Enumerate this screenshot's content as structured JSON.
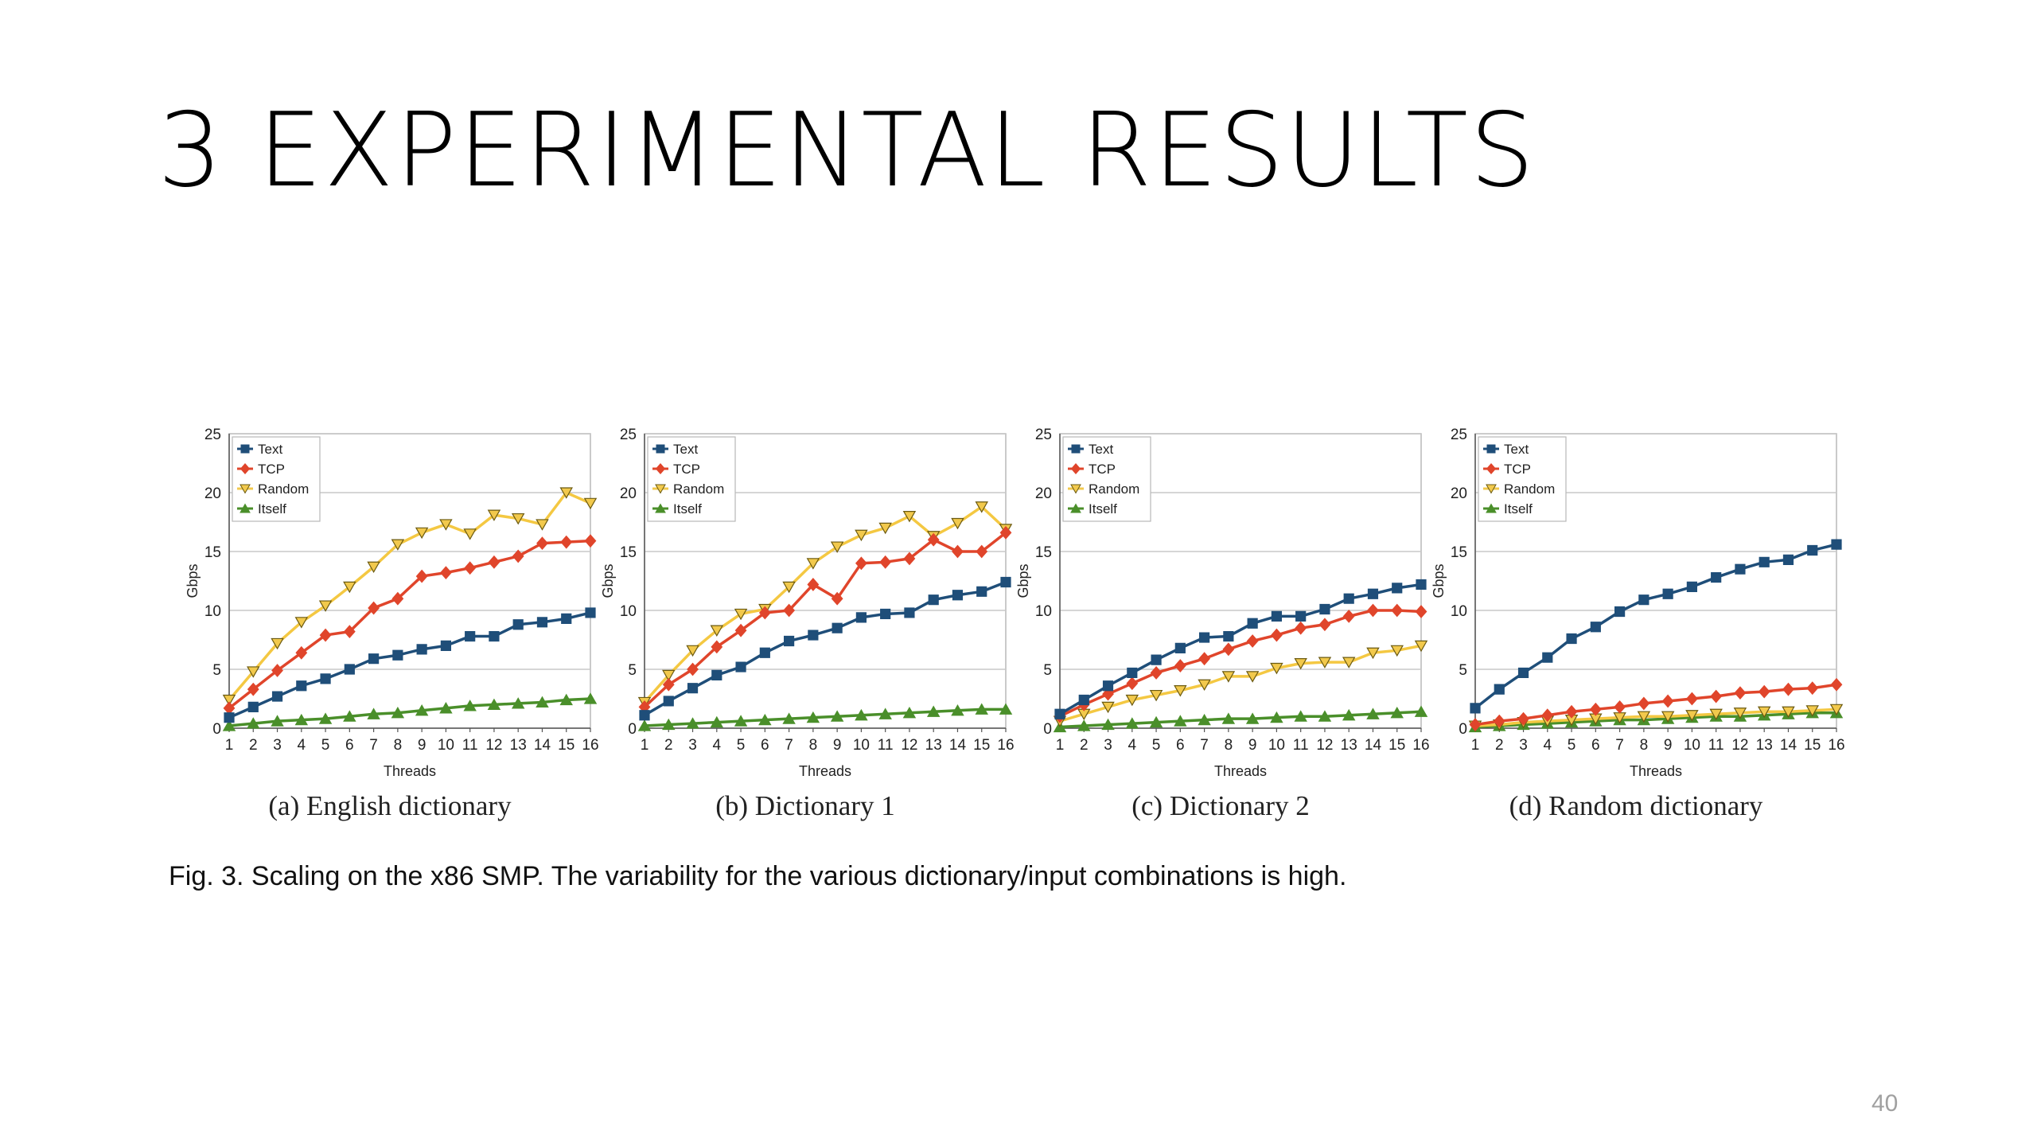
{
  "slide": {
    "title": "3 EXPERIMENTAL RESULTS",
    "figure_caption": "Fig. 3. Scaling on the x86 SMP. The variability for the various dictionary/input combinations is high.",
    "page_number": "40"
  },
  "chart_data": [
    {
      "type": "line",
      "caption": "(a) English dictionary",
      "xlabel": "Threads",
      "ylabel": "Gbps",
      "ylim": [
        0,
        25
      ],
      "yticks": [
        0,
        5,
        10,
        15,
        20,
        25
      ],
      "x": [
        1,
        2,
        3,
        4,
        5,
        6,
        7,
        8,
        9,
        10,
        11,
        12,
        13,
        14,
        15,
        16
      ],
      "grid": true,
      "legend_position": "top-left",
      "series": [
        {
          "name": "Text",
          "color": "#1f4e79",
          "marker": "square",
          "values": [
            0.9,
            1.8,
            2.7,
            3.6,
            4.2,
            5.0,
            5.9,
            6.2,
            6.7,
            7.0,
            7.8,
            7.8,
            8.8,
            9.0,
            9.3,
            9.8
          ]
        },
        {
          "name": "TCP",
          "color": "#e0452b",
          "marker": "diamond",
          "values": [
            1.7,
            3.3,
            4.9,
            6.4,
            7.9,
            8.2,
            10.2,
            11.0,
            12.9,
            13.2,
            13.6,
            14.1,
            14.6,
            15.7,
            15.8,
            15.9
          ]
        },
        {
          "name": "Random",
          "color": "#f2c94c",
          "marker": "triangle-down",
          "values": [
            2.4,
            4.8,
            7.2,
            9.0,
            10.4,
            12.0,
            13.7,
            15.6,
            16.6,
            17.3,
            16.5,
            18.1,
            17.8,
            17.3,
            20.0,
            19.1
          ]
        },
        {
          "name": "Itself",
          "color": "#4a8f2a",
          "marker": "triangle-up",
          "values": [
            0.2,
            0.4,
            0.6,
            0.7,
            0.8,
            1.0,
            1.2,
            1.3,
            1.5,
            1.7,
            1.9,
            2.0,
            2.1,
            2.2,
            2.4,
            2.5
          ]
        }
      ]
    },
    {
      "type": "line",
      "caption": "(b) Dictionary 1",
      "xlabel": "Threads",
      "ylabel": "Gbps",
      "ylim": [
        0,
        25
      ],
      "yticks": [
        0,
        5,
        10,
        15,
        20,
        25
      ],
      "x": [
        1,
        2,
        3,
        4,
        5,
        6,
        7,
        8,
        9,
        10,
        11,
        12,
        13,
        14,
        15,
        16
      ],
      "grid": true,
      "legend_position": "top-left",
      "series": [
        {
          "name": "Text",
          "color": "#1f4e79",
          "marker": "square",
          "values": [
            1.1,
            2.3,
            3.4,
            4.5,
            5.2,
            6.4,
            7.4,
            7.9,
            8.5,
            9.4,
            9.7,
            9.8,
            10.9,
            11.3,
            11.6,
            12.4
          ]
        },
        {
          "name": "TCP",
          "color": "#e0452b",
          "marker": "diamond",
          "values": [
            1.8,
            3.7,
            5.0,
            6.9,
            8.3,
            9.8,
            10.0,
            12.2,
            11.0,
            14.0,
            14.1,
            14.4,
            16.0,
            15.0,
            15.0,
            16.6
          ]
        },
        {
          "name": "Random",
          "color": "#f2c94c",
          "marker": "triangle-down",
          "values": [
            2.2,
            4.5,
            6.6,
            8.3,
            9.7,
            10.1,
            12.0,
            14.0,
            15.4,
            16.4,
            17.0,
            18.0,
            16.3,
            17.4,
            18.8,
            16.9
          ]
        },
        {
          "name": "Itself",
          "color": "#4a8f2a",
          "marker": "triangle-up",
          "values": [
            0.2,
            0.3,
            0.4,
            0.5,
            0.6,
            0.7,
            0.8,
            0.9,
            1.0,
            1.1,
            1.2,
            1.3,
            1.4,
            1.5,
            1.6,
            1.6
          ]
        }
      ]
    },
    {
      "type": "line",
      "caption": "(c) Dictionary 2",
      "xlabel": "Threads",
      "ylabel": "Gbps",
      "ylim": [
        0,
        25
      ],
      "yticks": [
        0,
        5,
        10,
        15,
        20,
        25
      ],
      "x": [
        1,
        2,
        3,
        4,
        5,
        6,
        7,
        8,
        9,
        10,
        11,
        12,
        13,
        14,
        15,
        16
      ],
      "grid": true,
      "legend_position": "top-left",
      "series": [
        {
          "name": "Text",
          "color": "#1f4e79",
          "marker": "square",
          "values": [
            1.2,
            2.4,
            3.6,
            4.7,
            5.8,
            6.8,
            7.7,
            7.8,
            8.9,
            9.5,
            9.5,
            10.1,
            11.0,
            11.4,
            11.9,
            12.2
          ]
        },
        {
          "name": "TCP",
          "color": "#e0452b",
          "marker": "diamond",
          "values": [
            1.0,
            2.0,
            2.9,
            3.8,
            4.7,
            5.3,
            5.9,
            6.7,
            7.4,
            7.9,
            8.5,
            8.8,
            9.5,
            10.0,
            10.0,
            9.9
          ]
        },
        {
          "name": "Random",
          "color": "#f2c94c",
          "marker": "triangle-down",
          "values": [
            0.6,
            1.2,
            1.8,
            2.4,
            2.8,
            3.2,
            3.7,
            4.4,
            4.4,
            5.1,
            5.5,
            5.6,
            5.6,
            6.4,
            6.6,
            7.0
          ]
        },
        {
          "name": "Itself",
          "color": "#4a8f2a",
          "marker": "triangle-up",
          "values": [
            0.1,
            0.2,
            0.3,
            0.4,
            0.5,
            0.6,
            0.7,
            0.8,
            0.8,
            0.9,
            1.0,
            1.0,
            1.1,
            1.2,
            1.3,
            1.4
          ]
        }
      ]
    },
    {
      "type": "line",
      "caption": "(d) Random dictionary",
      "xlabel": "Threads",
      "ylabel": "Gbps",
      "ylim": [
        0,
        25
      ],
      "yticks": [
        0,
        5,
        10,
        15,
        20,
        25
      ],
      "x": [
        1,
        2,
        3,
        4,
        5,
        6,
        7,
        8,
        9,
        10,
        11,
        12,
        13,
        14,
        15,
        16
      ],
      "grid": true,
      "legend_position": "top-left",
      "series": [
        {
          "name": "Text",
          "color": "#1f4e79",
          "marker": "square",
          "values": [
            1.7,
            3.3,
            4.7,
            6.0,
            7.6,
            8.6,
            9.9,
            10.9,
            11.4,
            12.0,
            12.8,
            13.5,
            14.1,
            14.3,
            15.1,
            15.6
          ]
        },
        {
          "name": "TCP",
          "color": "#e0452b",
          "marker": "diamond",
          "values": [
            0.3,
            0.6,
            0.8,
            1.1,
            1.4,
            1.6,
            1.8,
            2.1,
            2.3,
            2.5,
            2.7,
            3.0,
            3.1,
            3.3,
            3.4,
            3.7
          ]
        },
        {
          "name": "Random",
          "color": "#f2c94c",
          "marker": "triangle-down",
          "values": [
            0.2,
            0.3,
            0.5,
            0.6,
            0.7,
            0.8,
            0.9,
            1.0,
            1.0,
            1.1,
            1.2,
            1.3,
            1.4,
            1.4,
            1.5,
            1.6
          ]
        },
        {
          "name": "Itself",
          "color": "#4a8f2a",
          "marker": "triangle-up",
          "values": [
            0.1,
            0.2,
            0.3,
            0.4,
            0.5,
            0.6,
            0.7,
            0.7,
            0.8,
            0.9,
            1.0,
            1.0,
            1.1,
            1.2,
            1.3,
            1.3
          ]
        }
      ]
    }
  ]
}
